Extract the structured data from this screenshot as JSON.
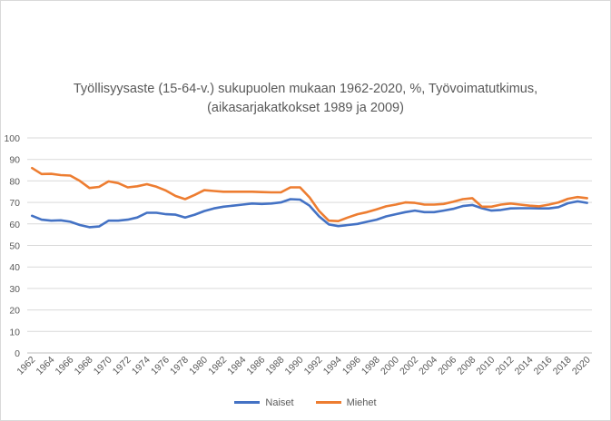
{
  "chart_data": {
    "type": "line",
    "title": "Työllisyysaste (15-64-v.) sukupuolen mukaan 1962-2020, %, Työvoimatutkimus,",
    "subtitle": "(aikasarjakatkokset 1989 ja 2009)",
    "xlabel": "",
    "ylabel": "",
    "ylim": [
      0,
      100
    ],
    "yticks": [
      0,
      10,
      20,
      30,
      40,
      50,
      60,
      70,
      80,
      90,
      100
    ],
    "x": [
      1962,
      1963,
      1964,
      1965,
      1966,
      1967,
      1968,
      1969,
      1970,
      1971,
      1972,
      1973,
      1974,
      1975,
      1976,
      1977,
      1978,
      1979,
      1980,
      1981,
      1982,
      1983,
      1984,
      1985,
      1986,
      1987,
      1988,
      1989,
      1990,
      1991,
      1992,
      1993,
      1994,
      1995,
      1996,
      1997,
      1998,
      1999,
      2000,
      2001,
      2002,
      2003,
      2004,
      2005,
      2006,
      2007,
      2008,
      2009,
      2010,
      2011,
      2012,
      2013,
      2014,
      2015,
      2016,
      2017,
      2018,
      2019,
      2020
    ],
    "xticks": [
      1962,
      1964,
      1966,
      1968,
      1970,
      1972,
      1974,
      1976,
      1978,
      1980,
      1982,
      1984,
      1986,
      1988,
      1990,
      1992,
      1994,
      1996,
      1998,
      2000,
      2002,
      2004,
      2006,
      2008,
      2010,
      2012,
      2014,
      2016,
      2018,
      2020
    ],
    "grid": true,
    "legend_position": "bottom",
    "series": [
      {
        "name": "Naiset",
        "color": "#4472c4",
        "values": [
          63.8,
          62.0,
          61.5,
          61.7,
          61.0,
          59.5,
          58.5,
          58.8,
          61.5,
          61.5,
          62.0,
          63.0,
          65.2,
          65.2,
          64.5,
          64.3,
          63.0,
          64.3,
          66.0,
          67.2,
          68.0,
          68.5,
          69.0,
          69.5,
          69.3,
          69.5,
          70.0,
          71.5,
          71.3,
          68.5,
          63.5,
          59.8,
          59.0,
          59.5,
          60.0,
          61.0,
          62.0,
          63.5,
          64.5,
          65.5,
          66.2,
          65.5,
          65.5,
          66.2,
          67.0,
          68.3,
          68.8,
          67.3,
          66.2,
          66.5,
          67.2,
          67.3,
          67.3,
          67.2,
          67.2,
          67.8,
          69.6,
          70.5,
          69.8
        ]
      },
      {
        "name": "Miehet",
        "color": "#ed7d31",
        "values": [
          86.0,
          83.2,
          83.3,
          82.7,
          82.5,
          80.0,
          76.7,
          77.2,
          79.8,
          79.0,
          77.0,
          77.5,
          78.5,
          77.3,
          75.5,
          73.0,
          71.5,
          73.5,
          75.7,
          75.3,
          75.0,
          75.0,
          75.0,
          75.0,
          74.8,
          74.7,
          74.7,
          77.0,
          77.0,
          72.3,
          66.0,
          61.5,
          61.3,
          63.0,
          64.5,
          65.5,
          66.8,
          68.2,
          69.0,
          70.0,
          69.8,
          69.0,
          69.0,
          69.3,
          70.3,
          71.5,
          72.0,
          68.0,
          68.0,
          69.0,
          69.5,
          69.0,
          68.5,
          68.2,
          69.0,
          70.0,
          71.7,
          72.5,
          72.0
        ]
      }
    ]
  }
}
